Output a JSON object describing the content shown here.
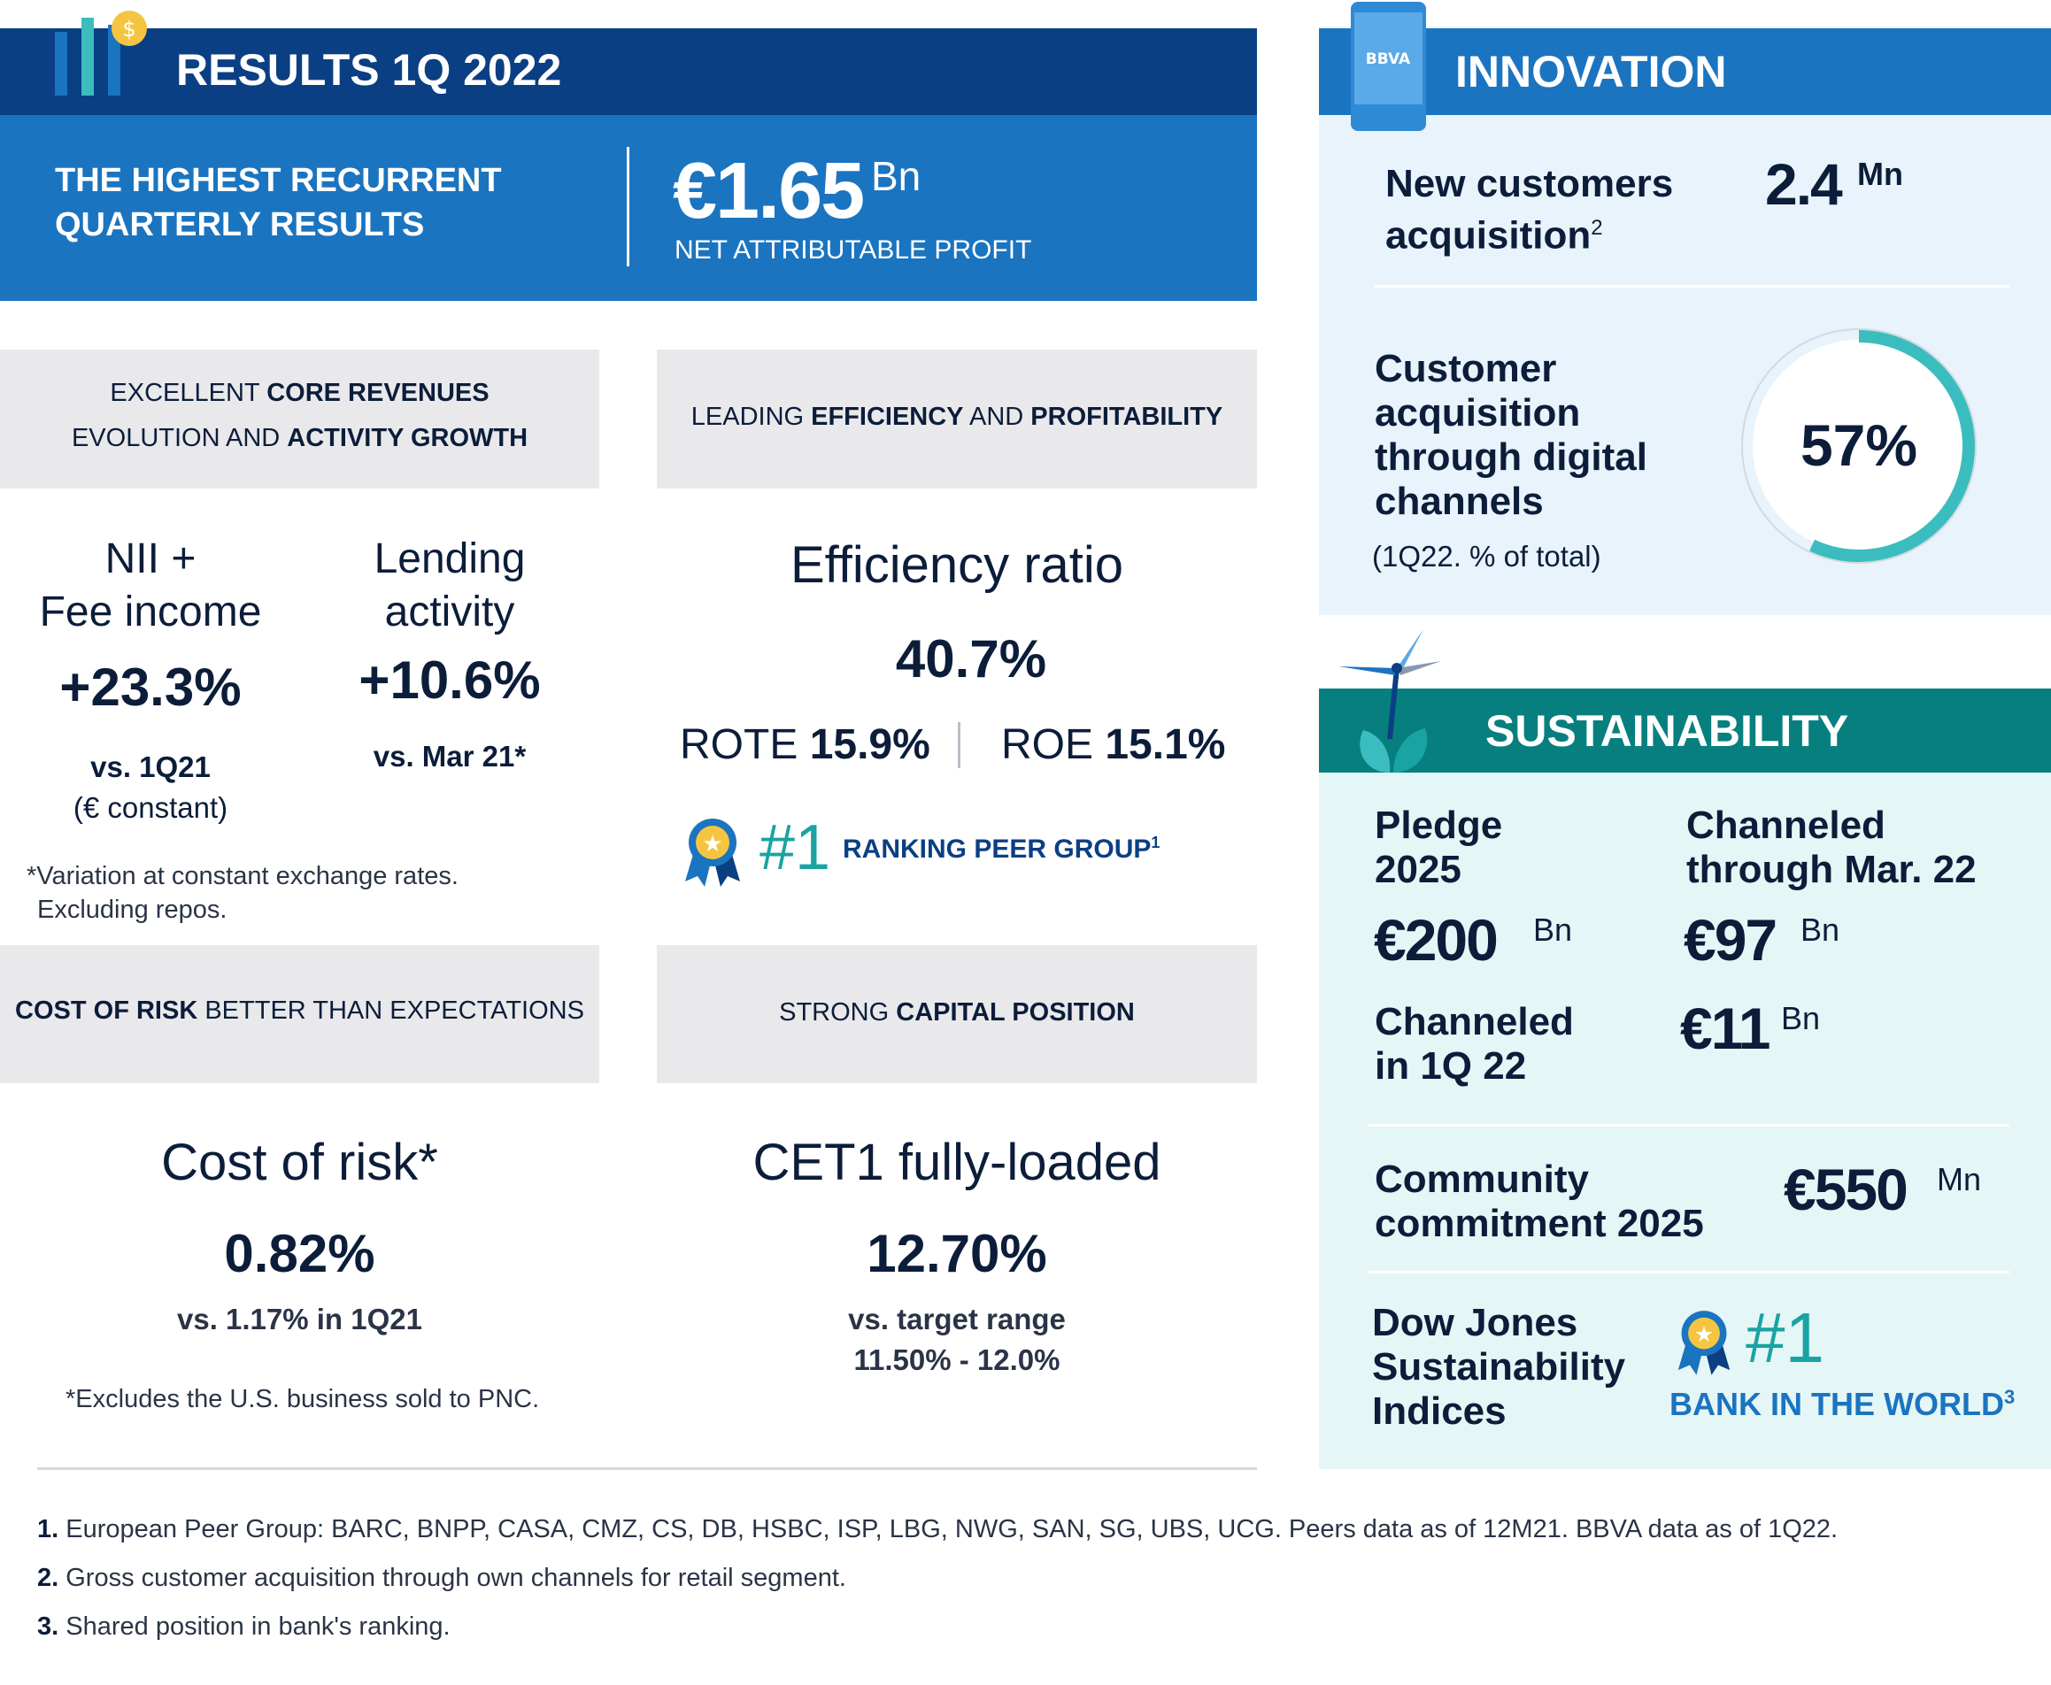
{
  "results": {
    "title": "RESULTS 1Q 2022",
    "headline_line1": "THE HIGHEST RECURRENT",
    "headline_line2": "QUARTERLY RESULTS",
    "profit_value": "€1.65",
    "profit_unit": "Bn",
    "profit_label": "NET ATTRIBUTABLE PROFIT"
  },
  "section_core": {
    "box_line1_pre": "EXCELLENT ",
    "box_line1_bold": "CORE REVENUES",
    "box_line2_pre": "EVOLUTION AND ",
    "box_line2_bold": "ACTIVITY GROWTH",
    "nii_line1": "NII +",
    "nii_line2": "Fee income",
    "nii_value": "+23.3%",
    "nii_note1": "vs. 1Q21",
    "nii_note2": "(€ constant)",
    "lending_line1": "Lending",
    "lending_line2": "activity",
    "lending_value": "+10.6%",
    "lending_note": "vs. Mar 21*",
    "footnote1": "*Variation at constant exchange rates.",
    "footnote2": "Excluding repos."
  },
  "section_efficiency": {
    "box_pre": "LEADING ",
    "box_bold1": "EFFICIENCY",
    "box_mid": " AND ",
    "box_bold2": "PROFITABILITY",
    "label": "Efficiency ratio",
    "value": "40.7%",
    "rote_label": "ROTE",
    "rote_value": "15.9%",
    "roe_label": "ROE",
    "roe_value": "15.1%",
    "rank_num": "#1",
    "rank_text": "RANKING PEER GROUP",
    "rank_sup": "1"
  },
  "section_risk": {
    "box_bold": "COST OF RISK",
    "box_rest": " BETTER THAN EXPECTATIONS",
    "label": "Cost of risk*",
    "value": "0.82%",
    "note": "vs. 1.17% in 1Q21",
    "footnote": "*Excludes the U.S. business sold to PNC."
  },
  "section_capital": {
    "box_pre": "STRONG ",
    "box_bold": "CAPITAL POSITION",
    "label": "CET1 fully-loaded",
    "value": "12.70%",
    "note1": "vs. target range",
    "note2": "11.50% - 12.0%"
  },
  "innovation": {
    "title": "INNOVATION",
    "phone_logo": "BBVA",
    "new_cust_line1": "New customers",
    "new_cust_line2": "acquisition",
    "new_cust_sup": "2",
    "new_cust_value": "2.4",
    "new_cust_unit": "Mn",
    "digital_line1": "Customer",
    "digital_line2": "acquisition",
    "digital_line3": "through digital",
    "digital_line4": "channels",
    "digital_note": "(1Q22. % of total)",
    "digital_value": "57%",
    "digital_fraction": 0.57
  },
  "sustainability": {
    "title": "SUSTAINABILITY",
    "pledge_line1": "Pledge",
    "pledge_line2": "2025",
    "pledge_value": "€200",
    "pledge_unit": "Bn",
    "channeled_mar_line1": "Channeled",
    "channeled_mar_line2": "through Mar. 22",
    "channeled_mar_value": "€97",
    "channeled_mar_unit": "Bn",
    "channeled_q_line1": "Channeled",
    "channeled_q_line2": "in 1Q 22",
    "channeled_q_value": "€11",
    "channeled_q_unit": "Bn",
    "community_line1": "Community",
    "community_line2": "commitment 2025",
    "community_value": "€550",
    "community_unit": "Mn",
    "dj_line1": "Dow Jones",
    "dj_line2": "Sustainability",
    "dj_line3": "Indices",
    "dj_rank": "#1",
    "dj_text": "BANK IN THE WORLD",
    "dj_sup": "3"
  },
  "footnotes": {
    "f1_num": "1.",
    "f1_text": " European Peer Group: BARC, BNPP, CASA, CMZ, CS, DB, HSBC, ISP, LBG, NWG, SAN, SG, UBS, UCG. Peers data as of 12M21. BBVA data as of 1Q22.",
    "f2_num": "2.",
    "f2_text": "  Gross customer acquisition through own channels for retail segment.",
    "f3_num": "3.",
    "f3_text": " Shared position in bank's ranking."
  },
  "colors": {
    "navy": "#0b3f83",
    "blue": "#1b74c0",
    "teal": "#087f7f",
    "ring": "#3bbdbf",
    "text": "#0c1d3a"
  }
}
